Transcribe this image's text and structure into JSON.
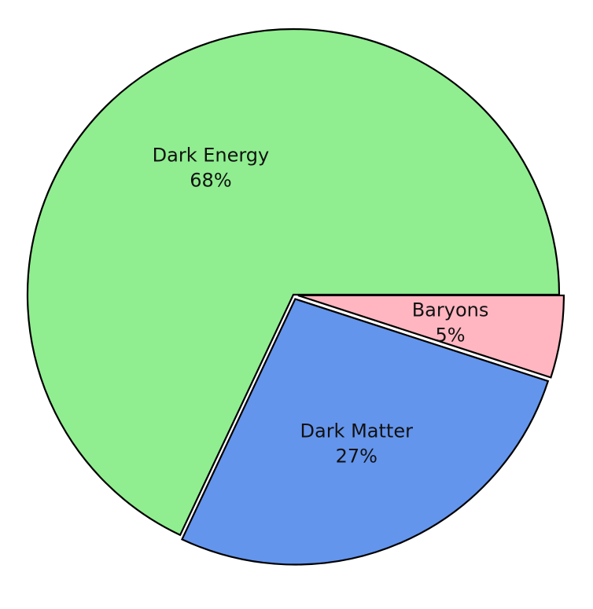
{
  "chart_data": {
    "type": "pie",
    "title": "",
    "slices": [
      {
        "label": "Baryons",
        "value": 5,
        "value_label": "5%",
        "color": "#ffb6c1",
        "exploded": true
      },
      {
        "label": "Dark Matter",
        "value": 27,
        "value_label": "27%",
        "color": "#6495ed",
        "exploded": true
      },
      {
        "label": "Dark Energy",
        "value": 68,
        "value_label": "68%",
        "color": "#90ee90",
        "exploded": false
      }
    ],
    "start_angle_deg": 0,
    "direction": "clockwise",
    "legend": "none",
    "stroke_color": "#000000"
  }
}
